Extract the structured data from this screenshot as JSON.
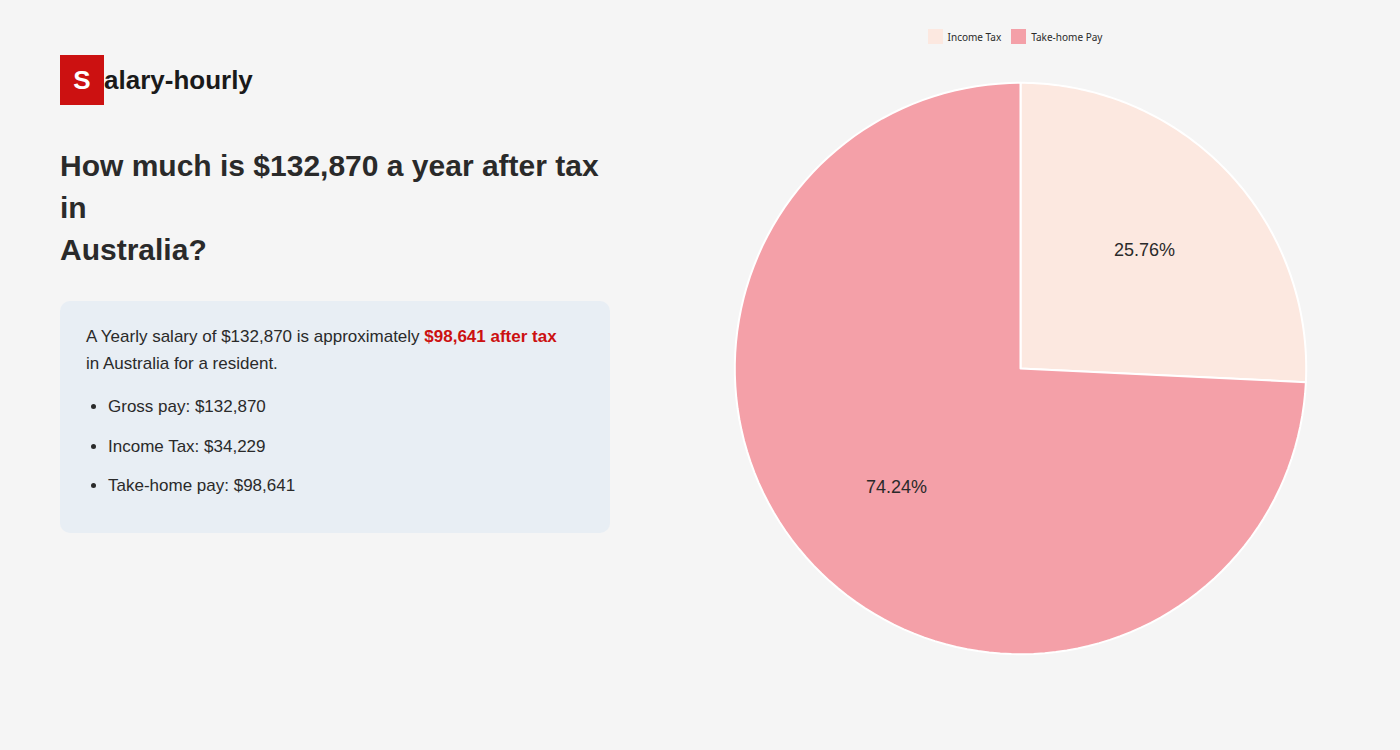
{
  "chart_data": {
    "type": "pie",
    "title": "How much is $132,870 a year after tax in\nAustralia?",
    "categories": [
      "Income Tax",
      "Take-home Pay"
    ],
    "values": [
      25.76,
      74.24
    ],
    "value_labels": [
      "25.76%",
      "74.24%"
    ],
    "colors": [
      "#fce8e0",
      "#f4a0a8"
    ],
    "data_labels": true,
    "legend": "top",
    "annotations": [
      "S",
      "alary-hourly",
      "A Yearly salary of $132,870 is approximately ",
      "$98,641 after tax",
      "in Australia for a resident.",
      "Gross pay: $132,870",
      "Income Tax: $34,229",
      "Take-home pay: $98,641"
    ]
  }
}
